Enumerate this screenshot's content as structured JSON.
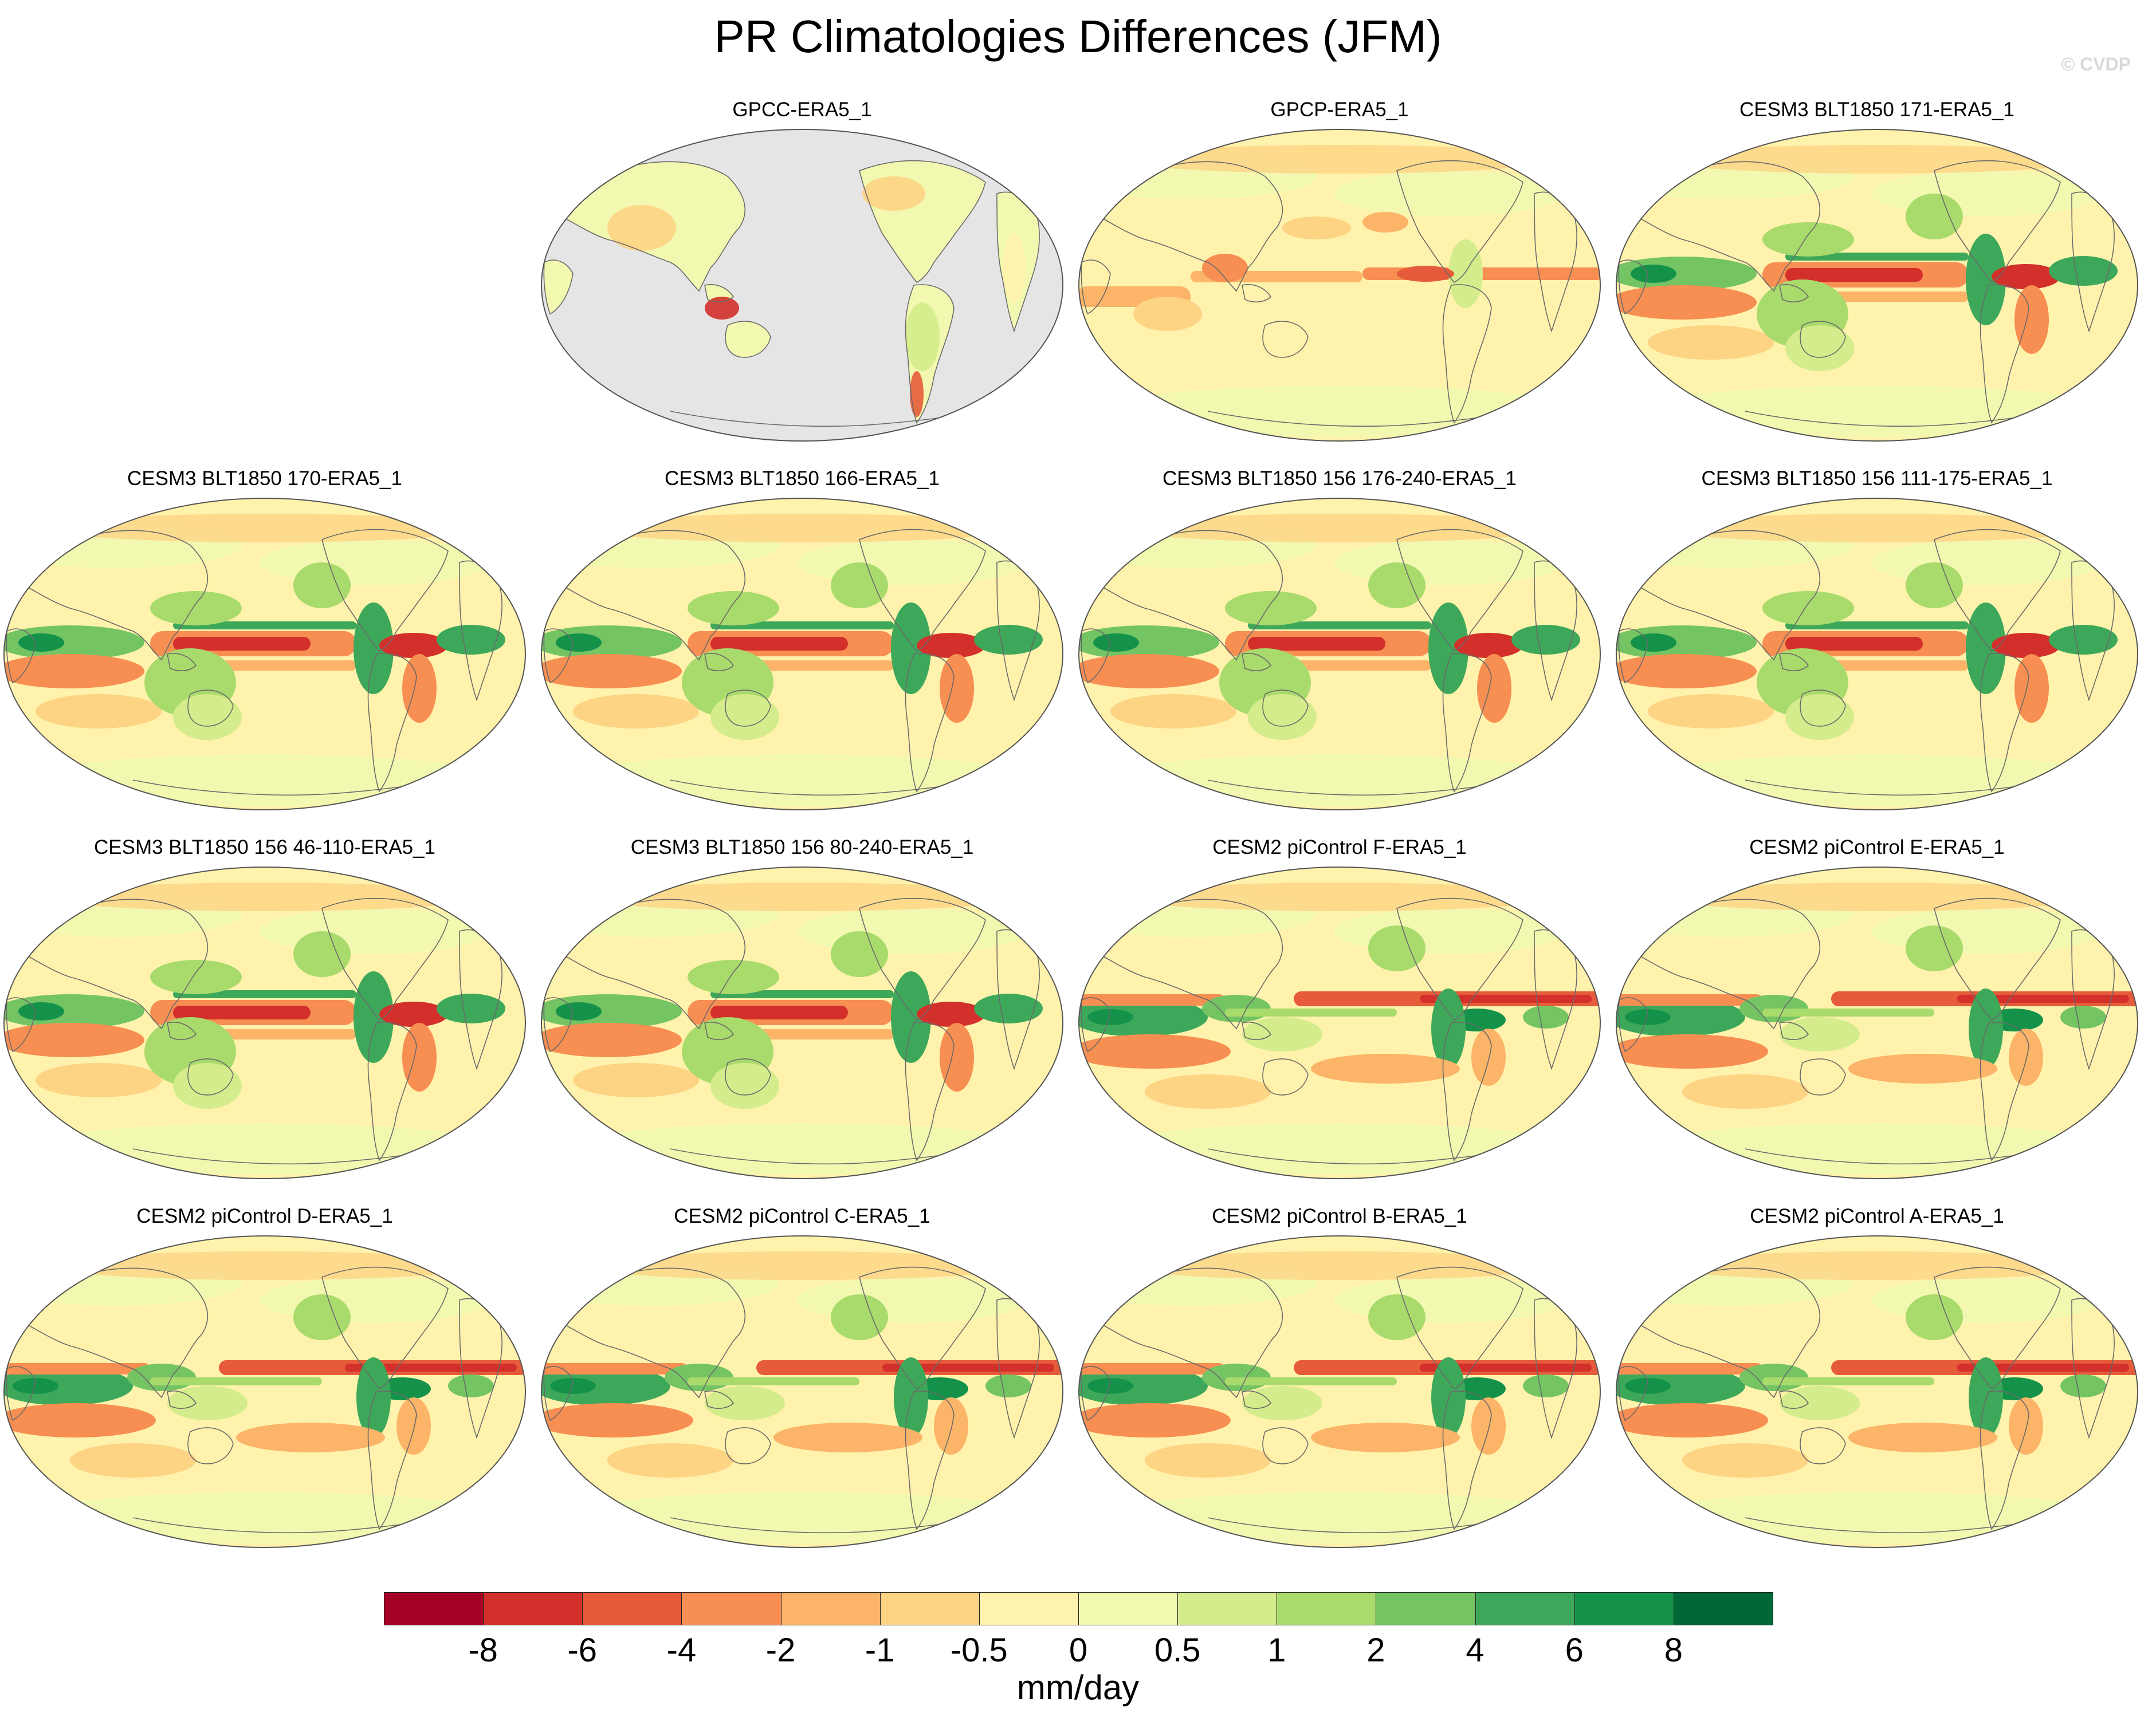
{
  "title": "PR Climatologies Differences (JFM)",
  "credit": "© CVDP",
  "panels": [
    {
      "label": "GPCC-ERA5_1",
      "kind": "land"
    },
    {
      "label": "GPCP-ERA5_1",
      "kind": "obs"
    },
    {
      "label": "CESM3 BLT1850 171-ERA5_1",
      "kind": "cesm3"
    },
    {
      "label": "CESM3 BLT1850 170-ERA5_1",
      "kind": "cesm3"
    },
    {
      "label": "CESM3 BLT1850 166-ERA5_1",
      "kind": "cesm3"
    },
    {
      "label": "CESM3 BLT1850 156 176-240-ERA5_1",
      "kind": "cesm3"
    },
    {
      "label": "CESM3 BLT1850 156 111-175-ERA5_1",
      "kind": "cesm3"
    },
    {
      "label": "CESM3 BLT1850 156 46-110-ERA5_1",
      "kind": "cesm3"
    },
    {
      "label": "CESM3 BLT1850 156 80-240-ERA5_1",
      "kind": "cesm3"
    },
    {
      "label": "CESM2 piControl F-ERA5_1",
      "kind": "cesm2"
    },
    {
      "label": "CESM2 piControl E-ERA5_1",
      "kind": "cesm2"
    },
    {
      "label": "CESM2 piControl D-ERA5_1",
      "kind": "cesm2"
    },
    {
      "label": "CESM2 piControl C-ERA5_1",
      "kind": "cesm2"
    },
    {
      "label": "CESM2 piControl B-ERA5_1",
      "kind": "cesm2"
    },
    {
      "label": "CESM2 piControl A-ERA5_1",
      "kind": "cesm2"
    }
  ],
  "colorbar": {
    "colors": [
      "#a50026",
      "#d3302b",
      "#e65b3a",
      "#f78e52",
      "#fbb468",
      "#fdd384",
      "#fff2ac",
      "#f2f8b0",
      "#d4ec8c",
      "#a9da6c",
      "#74c464",
      "#3ea85a",
      "#15924a",
      "#006837"
    ],
    "ticks": [
      "-8",
      "-6",
      "-4",
      "-2",
      "-1",
      "-0.5",
      "0",
      "0.5",
      "1",
      "2",
      "4",
      "6",
      "8"
    ],
    "unit": "mm/day"
  },
  "missing_color": "#e5e5e5"
}
